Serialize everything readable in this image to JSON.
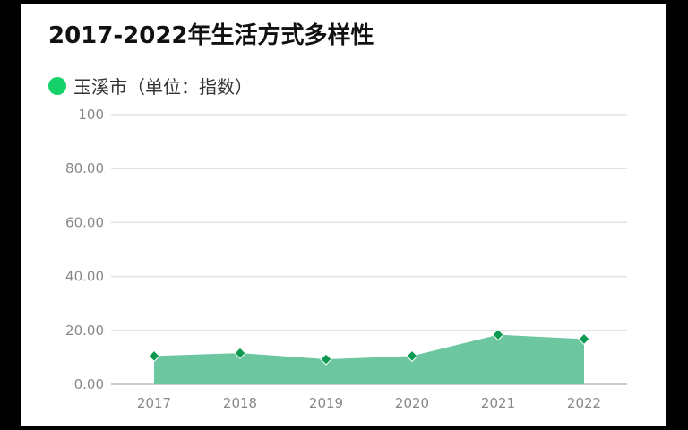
{
  "title": "2017-2022年生活方式多样性",
  "legend": {
    "label": "玉溪市（单位：指数）"
  },
  "colors": {
    "area": "#6cc7a0",
    "marker": "#0f9a54",
    "legend_dot": "#14d16a",
    "grid": "#e3e3e3",
    "axis": "#bbbbbb"
  },
  "chart_data": {
    "type": "area",
    "title": "2017-2022年生活方式多样性",
    "categories": [
      "2017",
      "2018",
      "2019",
      "2020",
      "2021",
      "2022"
    ],
    "series": [
      {
        "name": "玉溪市（单位：指数）",
        "values": [
          10.5,
          11.6,
          9.3,
          10.5,
          18.4,
          16.8
        ]
      }
    ],
    "ylim": [
      0,
      100
    ],
    "yticks": [
      "0.00",
      "20.00",
      "40.00",
      "60.00",
      "80.00",
      "100"
    ],
    "ytick_values": [
      0,
      20,
      40,
      60,
      80,
      100
    ],
    "grid": true,
    "legend_position": "top-left"
  }
}
